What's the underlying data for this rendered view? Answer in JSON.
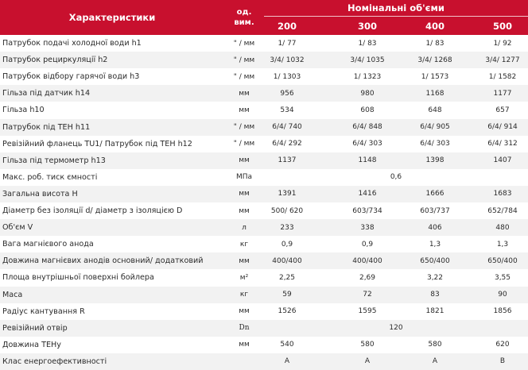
{
  "header": {
    "title": "Характеристики",
    "unit_line1": "од.",
    "unit_line2": "вим.",
    "volumes_title": "Номінальні об'єми",
    "capacities": [
      "200",
      "300",
      "400",
      "500"
    ]
  },
  "rows": [
    {
      "name": "Патрубок подачі холодної води h1",
      "unit": "\" / мм",
      "values": [
        "1/ 77",
        "1/ 83",
        "1/ 83",
        "1/ 92"
      ]
    },
    {
      "name": "Патрубок  рециркуляції h2",
      "unit": "\" / мм",
      "values": [
        "3/4/ 1032",
        "3/4/ 1035",
        "3/4/ 1268",
        "3/4/ 1277"
      ]
    },
    {
      "name": "Патрубок відбору гарячої води h3",
      "unit": "\" / мм",
      "values": [
        "1/ 1303",
        "1/ 1323",
        "1/ 1573",
        "1/ 1582"
      ]
    },
    {
      "name": "Гільза під датчик h14",
      "unit": "мм",
      "values": [
        "956",
        "980",
        "1168",
        "1177"
      ]
    },
    {
      "name": "Гільза h10",
      "unit": "мм",
      "values": [
        "534",
        "608",
        "648",
        "657"
      ]
    },
    {
      "name": "Патрубок під ТЕН h11",
      "unit": "\" / мм",
      "values": [
        "6/4/ 740",
        "6/4/ 848",
        "6/4/ 905",
        "6/4/ 914"
      ]
    },
    {
      "name": "Ревізійний фланець TU1/ Патрубок під ТЕН h12",
      "unit": "\" / мм",
      "values": [
        "6/4/ 292",
        "6/4/ 303",
        "6/4/ 303",
        "6/4/ 312"
      ]
    },
    {
      "name": "Гільза під термометр h13",
      "unit": "мм",
      "values": [
        "1137",
        "1148",
        "1398",
        "1407"
      ]
    },
    {
      "name": "Макс. роб. тиск ємності",
      "unit": "МПа",
      "span_value": "0,6"
    },
    {
      "name": "Загальна висота H",
      "unit": "мм",
      "values": [
        "1391",
        "1416",
        "1666",
        "1683"
      ]
    },
    {
      "name": "Діаметр без ізоляції d/ діаметр з ізоляцією D",
      "unit": "мм",
      "values": [
        "500/ 620",
        "603/734",
        "603/737",
        "652/784"
      ]
    },
    {
      "name": "Об'єм V",
      "unit": "л",
      "values": [
        "233",
        "338",
        "406",
        "480"
      ]
    },
    {
      "name": "Вага магнієвого анода",
      "unit": "кг",
      "values": [
        "0,9",
        "0,9",
        "1,3",
        "1,3"
      ]
    },
    {
      "name": "Довжина магнієвих анодів основний/ додатковий",
      "unit": "мм",
      "values": [
        "400/400",
        "400/400",
        "650/400",
        "650/400"
      ]
    },
    {
      "name": "Площа внутрішньої поверхні бойлера",
      "unit": "м²",
      "values": [
        "2,25",
        "2,69",
        "3,22",
        "3,55"
      ]
    },
    {
      "name": "Маса",
      "unit": "кг",
      "values": [
        "59",
        "72",
        "83",
        "90"
      ]
    },
    {
      "name": "Радіус кантування R",
      "unit": "мм",
      "values": [
        "1526",
        "1595",
        "1821",
        "1856"
      ]
    },
    {
      "name": "Ревізійний отвір",
      "unit": "Dn",
      "unit_serif": true,
      "span_value": "120"
    },
    {
      "name": "Довжина ТЕНу",
      "unit": "мм",
      "values": [
        "540",
        "580",
        "580",
        "620"
      ]
    },
    {
      "name": "Клас енергоефективності",
      "unit": "",
      "values": [
        "A",
        "A",
        "A",
        "B"
      ]
    }
  ]
}
